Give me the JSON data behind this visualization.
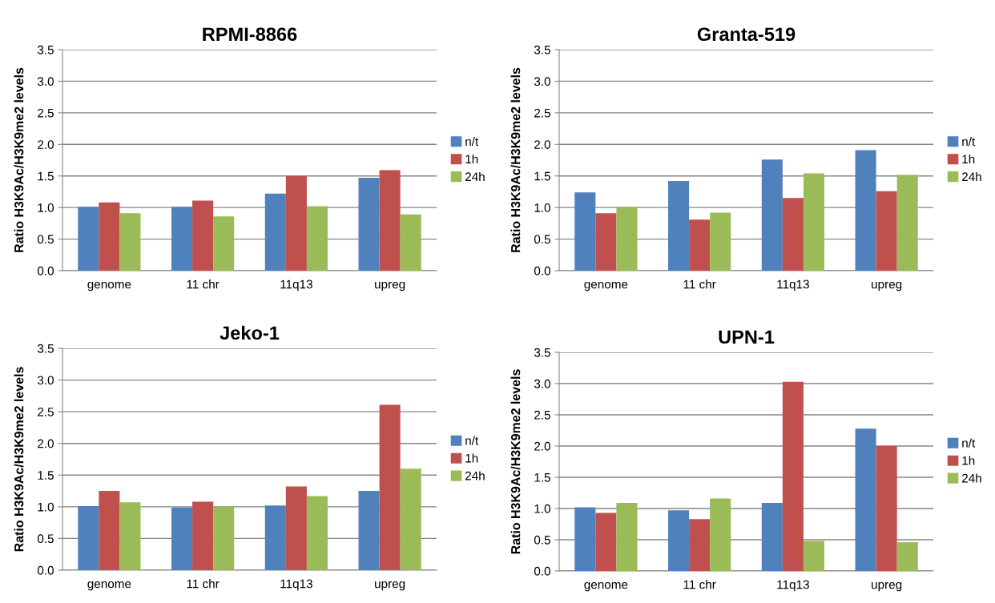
{
  "chart_data": [
    {
      "type": "bar",
      "title": "RPMI-8866",
      "ylabel": "Ratio H3K9Ac/H3K9me2 levels",
      "categories": [
        "genome",
        "11 chr",
        "11q13",
        "upreg"
      ],
      "ylim": [
        0,
        3.5
      ],
      "yticks": [
        {
          "value": 0,
          "label": "0.0"
        },
        {
          "value": 0.5,
          "label": "0.5"
        },
        {
          "value": 1,
          "label": "1.0"
        },
        {
          "value": 1.5,
          "label": "1.5"
        },
        {
          "value": 2,
          "label": "2.0"
        },
        {
          "value": 2.5,
          "label": "2.5"
        },
        {
          "value": 3,
          "label": "3.0"
        },
        {
          "value": 3.5,
          "label": "3.5"
        }
      ],
      "grid": "y",
      "legend": "right",
      "series": [
        {
          "name": "n/t",
          "color": "#4f81bd",
          "values": [
            1.01,
            1.01,
            1.22,
            1.47
          ]
        },
        {
          "name": "1h",
          "color": "#c0504d",
          "values": [
            1.08,
            1.11,
            1.5,
            1.59
          ]
        },
        {
          "name": "24h",
          "color": "#9bbb59",
          "values": [
            0.91,
            0.86,
            1.02,
            0.89
          ]
        }
      ]
    },
    {
      "type": "bar",
      "title": "Granta-519",
      "ylabel": "Ratio H3K9Ac/H3K9me2 levels",
      "categories": [
        "genome",
        "11 chr",
        "11q13",
        "upreg"
      ],
      "ylim": [
        0,
        3.5
      ],
      "yticks": [
        {
          "value": 0,
          "label": "0.0"
        },
        {
          "value": 0.5,
          "label": "0.5"
        },
        {
          "value": 1,
          "label": "1.0"
        },
        {
          "value": 1.5,
          "label": "1.5"
        },
        {
          "value": 2,
          "label": "2.0"
        },
        {
          "value": 2.5,
          "label": "2.5"
        },
        {
          "value": 3,
          "label": "3.0"
        },
        {
          "value": 3.5,
          "label": "3.5"
        }
      ],
      "grid": "y",
      "legend": "right",
      "series": [
        {
          "name": "n/t",
          "color": "#4f81bd",
          "values": [
            1.24,
            1.42,
            1.76,
            1.91
          ]
        },
        {
          "name": "1h",
          "color": "#c0504d",
          "values": [
            0.91,
            0.81,
            1.15,
            1.26
          ]
        },
        {
          "name": "24h",
          "color": "#9bbb59",
          "values": [
            1.01,
            0.92,
            1.54,
            1.52
          ]
        }
      ]
    },
    {
      "type": "bar",
      "title": "Jeko-1",
      "ylabel": "Ratio H3K9Ac/H3K9me2 levels",
      "categories": [
        "genome",
        "11 chr",
        "11q13",
        "upreg"
      ],
      "ylim": [
        0,
        3.5
      ],
      "yticks": [
        {
          "value": 0,
          "label": "0.0"
        },
        {
          "value": 0.5,
          "label": "0.5"
        },
        {
          "value": 1,
          "label": "1.0"
        },
        {
          "value": 1.5,
          "label": "1.5"
        },
        {
          "value": 2,
          "label": "2.0"
        },
        {
          "value": 2.5,
          "label": "2.5"
        },
        {
          "value": 3,
          "label": "3.0"
        },
        {
          "value": 3.5,
          "label": "3.5"
        }
      ],
      "grid": "y",
      "legend": "right",
      "series": [
        {
          "name": "n/t",
          "color": "#4f81bd",
          "values": [
            1.01,
            0.99,
            1.02,
            1.25
          ]
        },
        {
          "name": "1h",
          "color": "#c0504d",
          "values": [
            1.25,
            1.08,
            1.32,
            2.61
          ]
        },
        {
          "name": "24h",
          "color": "#9bbb59",
          "values": [
            1.07,
            1.0,
            1.17,
            1.6
          ]
        }
      ]
    },
    {
      "type": "bar",
      "title": "UPN-1",
      "ylabel": "Ratio H3K9Ac/H3K9me2 levels",
      "categories": [
        "genome",
        "11 chr",
        "11q13",
        "upreg"
      ],
      "ylim": [
        0,
        3.5
      ],
      "yticks": [
        {
          "value": 0,
          "label": "0.0"
        },
        {
          "value": 0.5,
          "label": "0.5"
        },
        {
          "value": 1,
          "label": "1.0"
        },
        {
          "value": 1.5,
          "label": "1.5"
        },
        {
          "value": 2,
          "label": "2.0"
        },
        {
          "value": 2.5,
          "label": "2.5"
        },
        {
          "value": 3,
          "label": "3.0"
        },
        {
          "value": 3.5,
          "label": "3.5"
        }
      ],
      "grid": "y",
      "legend": "right",
      "series": [
        {
          "name": "n/t",
          "color": "#4f81bd",
          "values": [
            1.02,
            0.97,
            1.09,
            2.28
          ]
        },
        {
          "name": "1h",
          "color": "#c0504d",
          "values": [
            0.93,
            0.83,
            3.03,
            2.0
          ]
        },
        {
          "name": "24h",
          "color": "#9bbb59",
          "values": [
            1.09,
            1.16,
            0.48,
            0.46
          ]
        }
      ]
    }
  ]
}
